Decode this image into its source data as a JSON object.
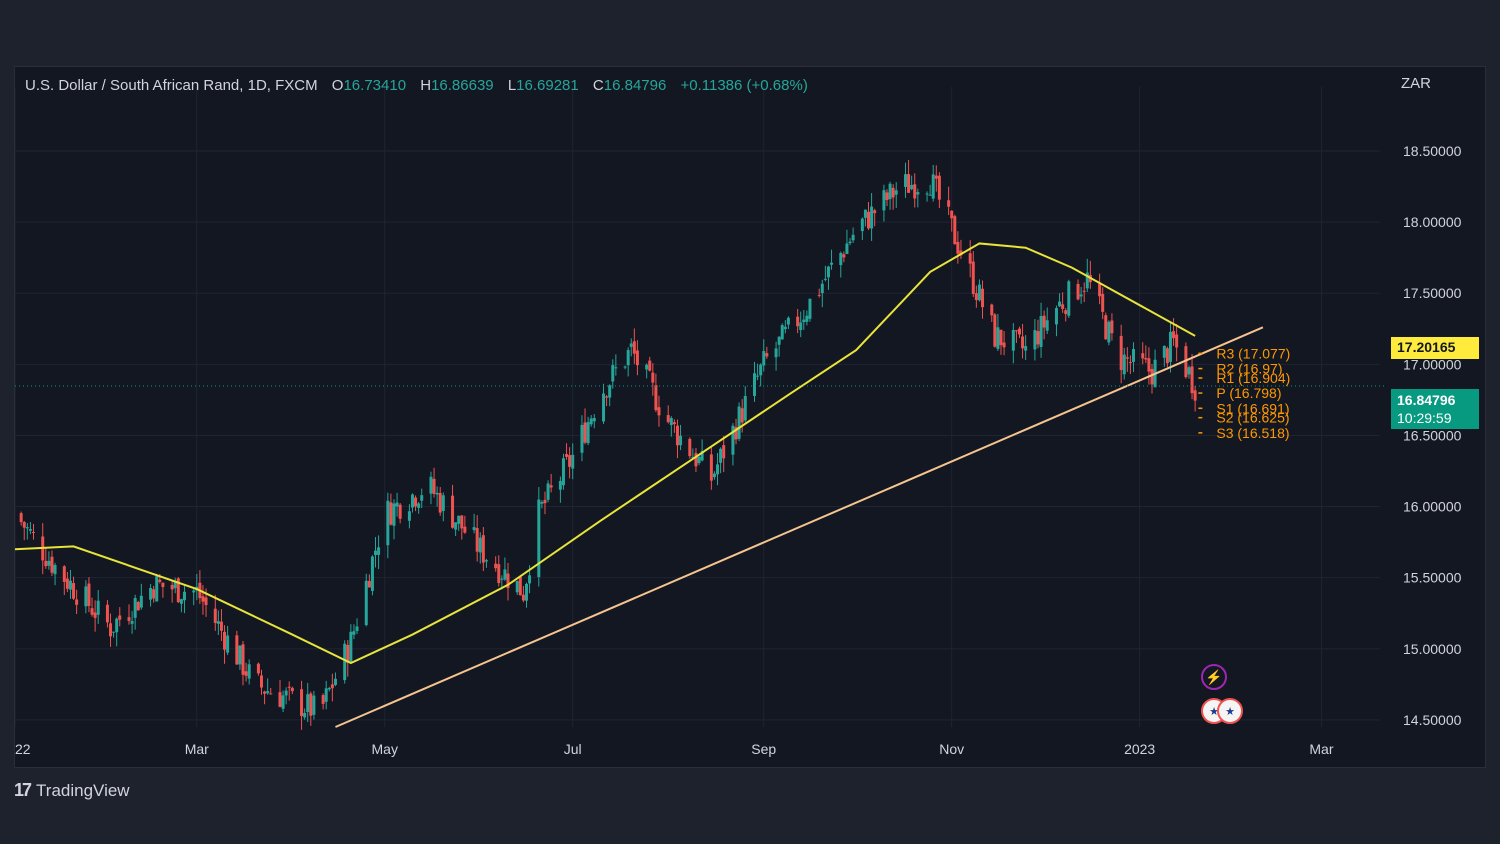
{
  "header": {
    "symbol": "U.S. Dollar / South African Rand, 1D, FXCM",
    "o_label": "O",
    "o_value": "16.73410",
    "h_label": "H",
    "h_value": "16.86639",
    "l_label": "L",
    "l_value": "16.69281",
    "c_label": "C",
    "c_value": "16.84796",
    "change": "+0.11386 (+0.68%)"
  },
  "currency": "ZAR",
  "footer": {
    "brand": "TradingView",
    "brand_mark": "17"
  },
  "price_tags": {
    "ma_value": "17.20165",
    "last_price": "16.84796",
    "countdown": "10:29:59"
  },
  "pivot_labels": [
    "R3 (17.077)",
    "R2 (16.97)",
    "R1 (16.904)",
    "P (16.798)",
    "S1 (16.691)",
    "S2 (16.625)",
    "S3 (16.518)"
  ],
  "pivot_values": [
    17.077,
    16.97,
    16.904,
    16.798,
    16.691,
    16.625,
    16.518
  ],
  "colors": {
    "up": "#26a69a",
    "down": "#ef5350",
    "ma": "#e8e43a",
    "trendline": "#f5c48f",
    "pivot": "#ff9800",
    "last_price": "#089981"
  },
  "chart_data": {
    "type": "candlestick",
    "interval": "1D",
    "x_tick_labels": [
      "22",
      "Mar",
      "May",
      "Jul",
      "Sep",
      "Nov",
      "2023",
      "Mar"
    ],
    "y_tick_labels": [
      "18.50000",
      "18.00000",
      "17.50000",
      "17.00000",
      "16.50000",
      "16.00000",
      "15.50000",
      "15.00000",
      "14.50000"
    ],
    "y_ticks": [
      18.5,
      18.0,
      17.5,
      17.0,
      16.5,
      16.0,
      15.5,
      15.0,
      14.5
    ],
    "ylim": [
      14.45,
      18.95
    ],
    "close_path": [
      {
        "x": "2022-01-01",
        "y": 15.95
      },
      {
        "x": "2022-01-15",
        "y": 15.55
      },
      {
        "x": "2022-02-01",
        "y": 15.15
      },
      {
        "x": "2022-02-15",
        "y": 15.45
      },
      {
        "x": "2022-03-01",
        "y": 15.4
      },
      {
        "x": "2022-03-20",
        "y": 14.75
      },
      {
        "x": "2022-04-10",
        "y": 14.55
      },
      {
        "x": "2022-04-20",
        "y": 15.05
      },
      {
        "x": "2022-05-01",
        "y": 15.95
      },
      {
        "x": "2022-05-15",
        "y": 16.15
      },
      {
        "x": "2022-06-01",
        "y": 15.7
      },
      {
        "x": "2022-06-15",
        "y": 15.4
      },
      {
        "x": "2022-06-20",
        "y": 15.95
      },
      {
        "x": "2022-07-01",
        "y": 16.35
      },
      {
        "x": "2022-07-10",
        "y": 16.8
      },
      {
        "x": "2022-07-20",
        "y": 17.1
      },
      {
        "x": "2022-08-01",
        "y": 16.6
      },
      {
        "x": "2022-08-15",
        "y": 16.2
      },
      {
        "x": "2022-09-01",
        "y": 17.0
      },
      {
        "x": "2022-09-15",
        "y": 17.4
      },
      {
        "x": "2022-10-01",
        "y": 17.95
      },
      {
        "x": "2022-10-15",
        "y": 18.25
      },
      {
        "x": "2022-10-25",
        "y": 18.3
      },
      {
        "x": "2022-11-05",
        "y": 17.75
      },
      {
        "x": "2022-11-15",
        "y": 17.2
      },
      {
        "x": "2022-11-25",
        "y": 17.1
      },
      {
        "x": "2022-12-05",
        "y": 17.4
      },
      {
        "x": "2022-12-15",
        "y": 17.6
      },
      {
        "x": "2022-12-25",
        "y": 17.05
      },
      {
        "x": "2023-01-05",
        "y": 16.95
      },
      {
        "x": "2023-01-12",
        "y": 17.15
      },
      {
        "x": "2023-01-19",
        "y": 16.85
      }
    ],
    "moving_average": [
      {
        "x": "2022-01-01",
        "y": 15.7
      },
      {
        "x": "2022-01-20",
        "y": 15.72
      },
      {
        "x": "2022-03-01",
        "y": 15.42
      },
      {
        "x": "2022-04-01",
        "y": 15.1
      },
      {
        "x": "2022-04-20",
        "y": 14.9
      },
      {
        "x": "2022-05-10",
        "y": 15.1
      },
      {
        "x": "2022-06-10",
        "y": 15.45
      },
      {
        "x": "2022-07-10",
        "y": 15.9
      },
      {
        "x": "2022-08-10",
        "y": 16.35
      },
      {
        "x": "2022-09-10",
        "y": 16.8
      },
      {
        "x": "2022-10-01",
        "y": 17.1
      },
      {
        "x": "2022-10-25",
        "y": 17.65
      },
      {
        "x": "2022-11-10",
        "y": 17.85
      },
      {
        "x": "2022-11-25",
        "y": 17.82
      },
      {
        "x": "2022-12-10",
        "y": 17.68
      },
      {
        "x": "2022-12-25",
        "y": 17.5
      },
      {
        "x": "2023-01-19",
        "y": 17.2
      }
    ],
    "trendline": [
      {
        "x": "2022-04-15",
        "y": 14.45
      },
      {
        "x": "2023-02-10",
        "y": 17.26
      }
    ],
    "last_price": 16.84796,
    "ma_last": 17.20165
  }
}
